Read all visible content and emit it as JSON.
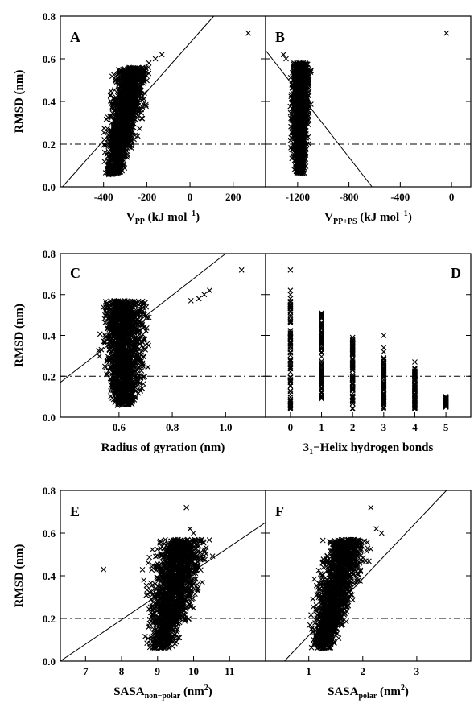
{
  "chart_data": [
    {
      "panel": "A",
      "type": "scatter",
      "xlabel": "V",
      "xlabel_sub": "PP",
      "xlabel_unit": " (kJ mol",
      "xlabel_sup": "−1",
      "xlabel_close": ")",
      "ylabel": "RMSD (nm)",
      "xlim": [
        -600,
        350
      ],
      "ylim": [
        0,
        0.8
      ],
      "xticks": [
        -400,
        -200,
        0,
        200
      ],
      "xtick_labels": [
        "-400",
        "-200",
        "0",
        "200"
      ],
      "yticks": [
        0.0,
        0.2,
        0.4,
        0.6,
        0.8
      ],
      "ytick_labels": [
        "0.0",
        "0.2",
        "0.4",
        "0.6",
        "0.8"
      ],
      "cluster": {
        "x_range": [
          -460,
          -160
        ],
        "y_range": [
          0.03,
          0.56
        ],
        "tilt": 0.55
      },
      "outliers": [
        [
          270,
          0.72
        ],
        [
          -130,
          0.62
        ],
        [
          -160,
          0.6
        ],
        [
          -190,
          0.58
        ]
      ],
      "fit_line": [
        [
          -590,
          0.0
        ],
        [
          110,
          0.8
        ]
      ],
      "hline": 0.2
    },
    {
      "panel": "B",
      "type": "scatter",
      "xlabel": "V",
      "xlabel_sub": "PP+PS",
      "xlabel_unit": " (kJ mol",
      "xlabel_sup": "−1",
      "xlabel_close": ")",
      "ylabel": "",
      "xlim": [
        -1450,
        150
      ],
      "ylim": [
        0,
        0.8
      ],
      "xticks": [
        -1200,
        -800,
        -400,
        0
      ],
      "xtick_labels": [
        "-1200",
        "-800",
        "-400",
        "0"
      ],
      "yticks": [
        0.0,
        0.2,
        0.4,
        0.6,
        0.8
      ],
      "ytick_labels": [],
      "cluster": {
        "x_range": [
          -1320,
          -1040
        ],
        "y_range": [
          0.03,
          0.58
        ],
        "tilt": 0.05
      },
      "outliers": [
        [
          -40,
          0.72
        ],
        [
          -1310,
          0.62
        ],
        [
          -1290,
          0.6
        ]
      ],
      "fit_line": [
        [
          -1450,
          0.64
        ],
        [
          -620,
          0.0
        ]
      ],
      "hline": 0.2
    },
    {
      "panel": "C",
      "type": "scatter",
      "xlabel": "Radius of gyration (nm)",
      "ylabel": "RMSD (nm)",
      "xlim": [
        0.38,
        1.15
      ],
      "ylim": [
        0,
        0.8
      ],
      "xticks": [
        0.6,
        0.8,
        1.0
      ],
      "xtick_labels": [
        "0.6",
        "0.8",
        "1.0"
      ],
      "yticks": [
        0.0,
        0.2,
        0.4,
        0.6,
        0.8
      ],
      "ytick_labels": [
        "0.0",
        "0.2",
        "0.4",
        "0.6",
        "0.8"
      ],
      "cluster": {
        "x_range": [
          0.46,
          0.78
        ],
        "y_range": [
          0.03,
          0.57
        ],
        "tilt": 0.0
      },
      "outliers": [
        [
          1.06,
          0.72
        ],
        [
          0.94,
          0.62
        ],
        [
          0.92,
          0.6
        ],
        [
          0.9,
          0.58
        ],
        [
          0.87,
          0.57
        ]
      ],
      "fit_line": [
        [
          0.38,
          0.17
        ],
        [
          1.0,
          0.8
        ]
      ],
      "hline": 0.2
    },
    {
      "panel": "D",
      "type": "scatter",
      "xlabel": "3",
      "xlabel_sub": "1",
      "xlabel_rest": "−Helix hydrogen bonds",
      "ylabel": "",
      "xlim": [
        -0.8,
        5.8
      ],
      "ylim": [
        0,
        0.8
      ],
      "xticks": [
        0,
        1,
        2,
        3,
        4,
        5
      ],
      "xtick_labels": [
        "0",
        "1",
        "2",
        "3",
        "4",
        "5"
      ],
      "yticks": [
        0.0,
        0.2,
        0.4,
        0.6,
        0.8
      ],
      "ytick_labels": [],
      "columns": [
        {
          "x": 0,
          "ymin": 0.04,
          "ymax": 0.58
        },
        {
          "x": 1,
          "ymin": 0.09,
          "ymax": 0.51
        },
        {
          "x": 2,
          "ymin": 0.04,
          "ymax": 0.39
        },
        {
          "x": 3,
          "ymin": 0.04,
          "ymax": 0.29
        },
        {
          "x": 4,
          "ymin": 0.04,
          "ymax": 0.24
        },
        {
          "x": 5,
          "ymin": 0.05,
          "ymax": 0.1
        }
      ],
      "outliers": [
        [
          0,
          0.72
        ],
        [
          0,
          0.62
        ],
        [
          0,
          0.6
        ],
        [
          3,
          0.4
        ],
        [
          3,
          0.34
        ],
        [
          3,
          0.32
        ],
        [
          4,
          0.27
        ]
      ],
      "hline": 0.2
    },
    {
      "panel": "E",
      "type": "scatter",
      "xlabel": "SASA",
      "xlabel_sub": "non−polar",
      "xlabel_unit": " (nm",
      "xlabel_sup": "2",
      "xlabel_close": ")",
      "ylabel": "RMSD (nm)",
      "xlim": [
        6.3,
        12.0
      ],
      "ylim": [
        0,
        0.8
      ],
      "xticks": [
        7,
        8,
        9,
        10,
        11
      ],
      "xtick_labels": [
        "7",
        "8",
        "9",
        "10",
        "11"
      ],
      "yticks": [
        0.0,
        0.2,
        0.4,
        0.6,
        0.8
      ],
      "ytick_labels": [
        "0.0",
        "0.2",
        "0.4",
        "0.6",
        "0.8"
      ],
      "cluster": {
        "x_range": [
          8.0,
          10.8
        ],
        "y_range": [
          0.03,
          0.57
        ],
        "tilt": 0.4
      },
      "outliers": [
        [
          9.8,
          0.72
        ],
        [
          7.5,
          0.43
        ],
        [
          9.9,
          0.62
        ],
        [
          10.0,
          0.6
        ]
      ],
      "fit_line": [
        [
          6.3,
          0.0
        ],
        [
          12.0,
          0.65
        ]
      ],
      "hline": 0.2
    },
    {
      "panel": "F",
      "type": "scatter",
      "xlabel": "SASA",
      "xlabel_sub": "polar",
      "xlabel_unit": " (nm",
      "xlabel_sup": "2",
      "xlabel_close": ")",
      "ylabel": "",
      "xlim": [
        0.2,
        4.0
      ],
      "ylim": [
        0,
        0.8
      ],
      "xticks": [
        1,
        2,
        3
      ],
      "xtick_labels": [
        "1",
        "2",
        "3"
      ],
      "yticks": [
        0.0,
        0.2,
        0.4,
        0.6,
        0.8
      ],
      "ytick_labels": [],
      "cluster": {
        "x_range": [
          0.75,
          2.2
        ],
        "y_range": [
          0.03,
          0.57
        ],
        "tilt": 0.6
      },
      "outliers": [
        [
          2.15,
          0.72
        ],
        [
          2.25,
          0.62
        ],
        [
          2.35,
          0.6
        ]
      ],
      "fit_line": [
        [
          0.55,
          0.0
        ],
        [
          3.55,
          0.8
        ]
      ],
      "hline": 0.2
    }
  ]
}
